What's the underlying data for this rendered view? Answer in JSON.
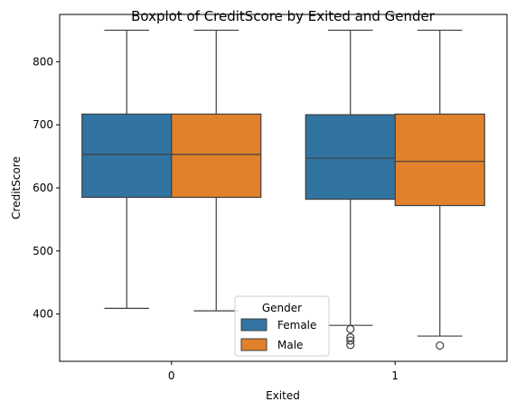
{
  "chart_data": {
    "type": "boxplot",
    "title": "Boxplot of CreditScore by Exited and Gender",
    "xlabel": "Exited",
    "ylabel": "CreditScore",
    "categories": [
      "0",
      "1"
    ],
    "ylim": [
      325,
      875
    ],
    "yticks": [
      400,
      500,
      600,
      700,
      800
    ],
    "grid": false,
    "legend": {
      "title": "Gender",
      "placement": "lower-center"
    },
    "colors": {
      "Female": "#3274a1",
      "Male": "#e1812c",
      "line": "#3f3f3f"
    },
    "series": [
      {
        "name": "Female",
        "boxes": [
          {
            "category": "0",
            "whisker_low": 409,
            "q1": 585,
            "median": 653,
            "q3": 717,
            "whisker_high": 850,
            "outliers": []
          },
          {
            "category": "1",
            "whisker_low": 382,
            "q1": 582,
            "median": 647,
            "q3": 716,
            "whisker_high": 850,
            "outliers": [
              376,
              363,
              358,
              351
            ]
          }
        ]
      },
      {
        "name": "Male",
        "boxes": [
          {
            "category": "0",
            "whisker_low": 405,
            "q1": 585,
            "median": 653,
            "q3": 717,
            "whisker_high": 850,
            "outliers": []
          },
          {
            "category": "1",
            "whisker_low": 365,
            "q1": 572,
            "median": 642,
            "q3": 717,
            "whisker_high": 850,
            "outliers": [
              350
            ]
          }
        ]
      }
    ]
  }
}
